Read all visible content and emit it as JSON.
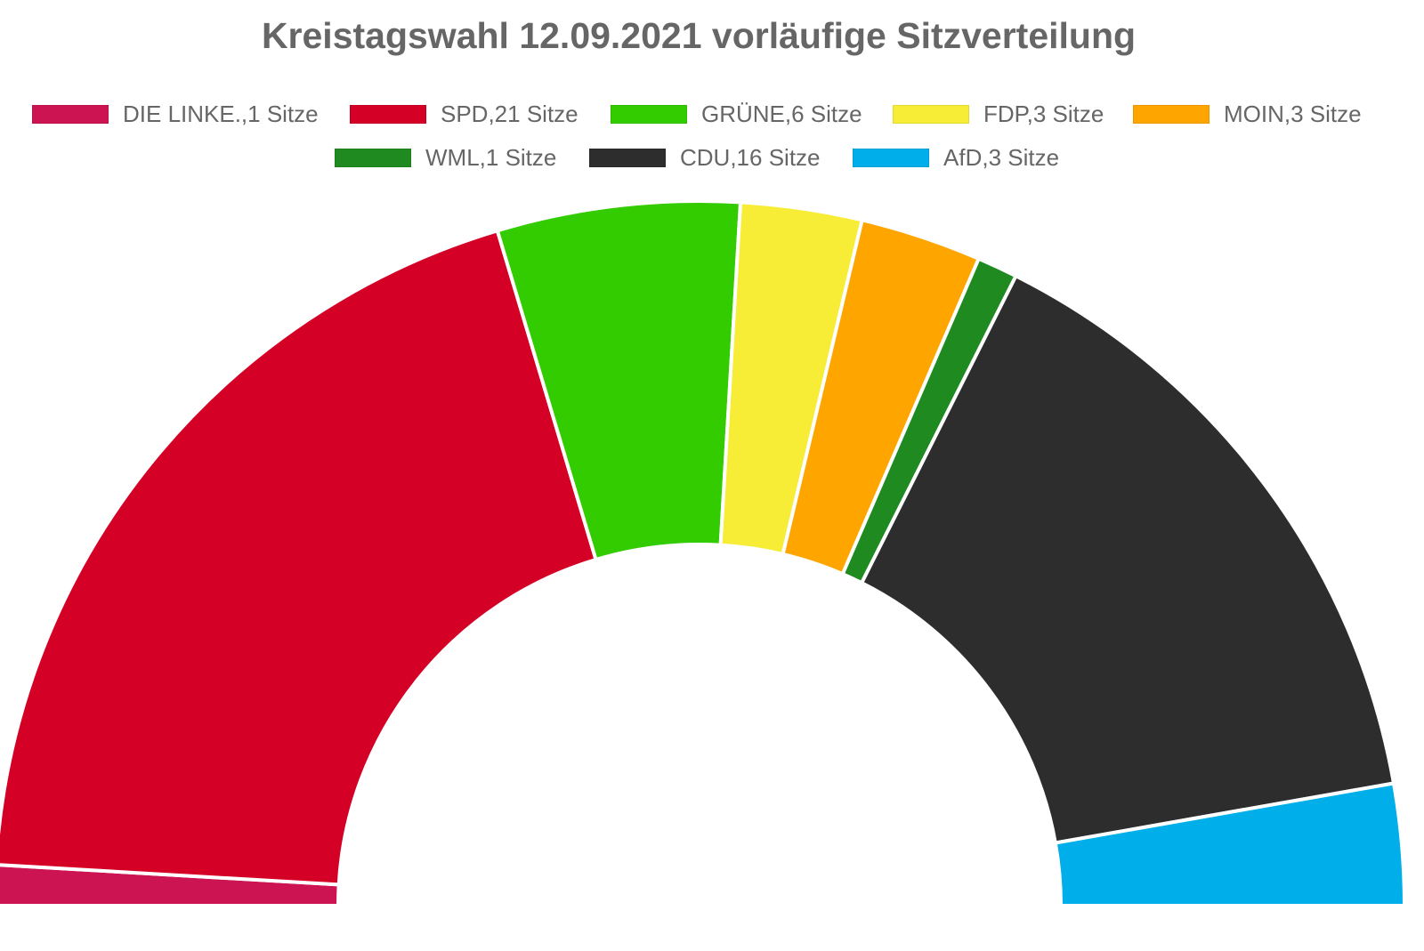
{
  "chart_data": {
    "type": "pie",
    "variant": "half-doughnut",
    "title": "Kreistagswahl 12.09.2021 vorläufige Sitzverteilung",
    "legend_position": "top",
    "unit": "Sitze",
    "categories": [
      "DIE LINKE.",
      "SPD",
      "GRÜNE",
      "FDP",
      "MOIN",
      "WML",
      "CDU",
      "AfD"
    ],
    "values": [
      1,
      21,
      6,
      3,
      3,
      1,
      16,
      3
    ],
    "legend_labels": [
      "DIE LINKE.,1 Sitze",
      "SPD,21 Sitze",
      "GRÜNE,6 Sitze",
      "FDP,3 Sitze",
      "MOIN,3 Sitze",
      "WML,1 Sitze",
      "CDU,16 Sitze",
      "AfD,3 Sitze"
    ],
    "colors": [
      "#cc1452",
      "#d40026",
      "#33cc00",
      "#f7ec36",
      "#ffa500",
      "#1f8a1f",
      "#2d2d2d",
      "#00aeea"
    ]
  }
}
